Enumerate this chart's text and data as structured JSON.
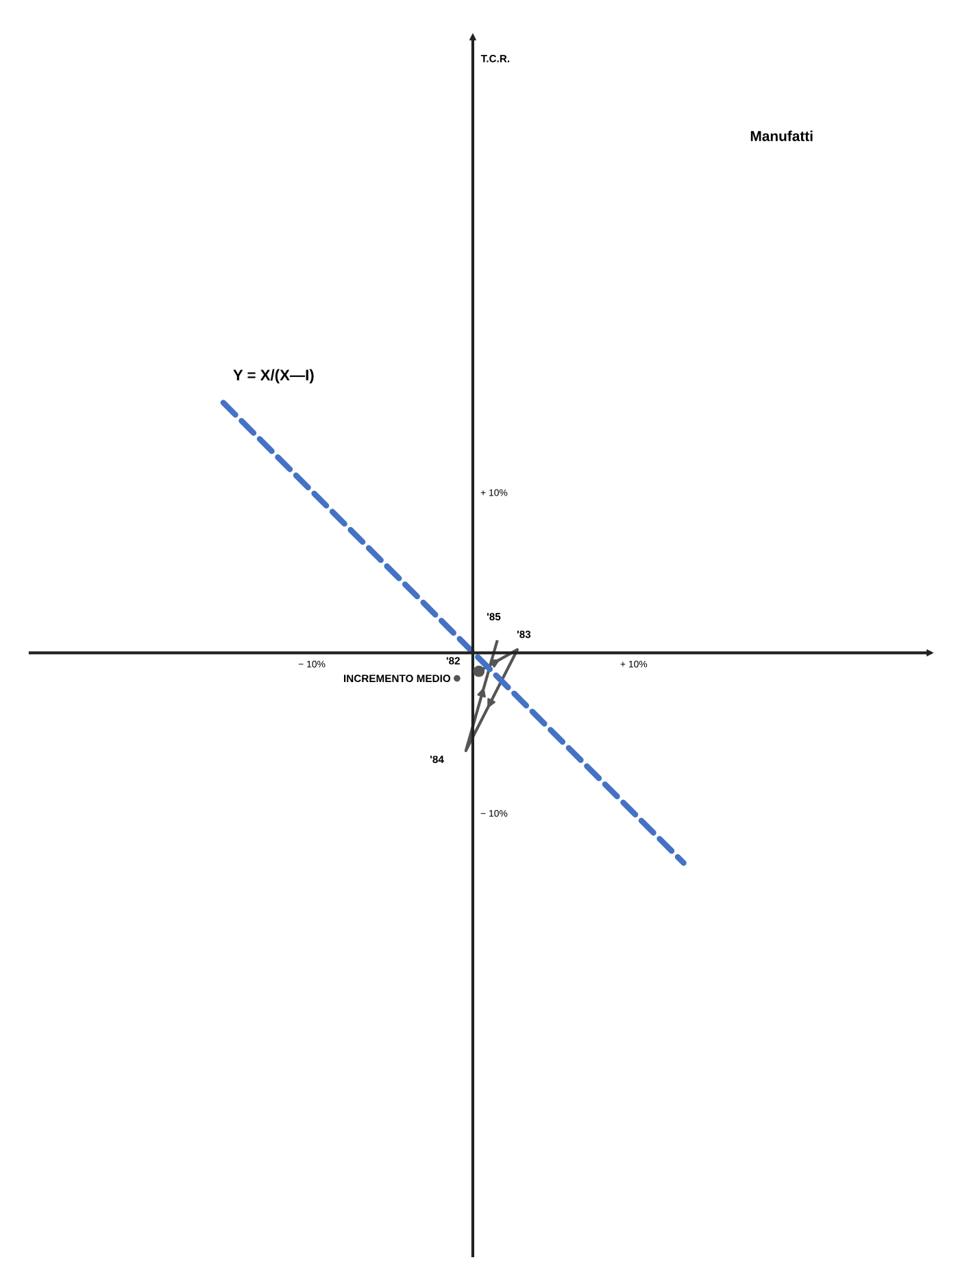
{
  "chart_data": {
    "type": "line",
    "title": "Manufatti",
    "ylabel": "T.C.R.",
    "xlim": [
      -27.5,
      28.4
    ],
    "ylim": [
      -37.6,
      38.4
    ],
    "xticks": [
      {
        "value": -10,
        "label": "− 10%"
      },
      {
        "value": 10,
        "label": "+ 10%"
      }
    ],
    "yticks": [
      {
        "value": 10,
        "label": "+ 10%"
      },
      {
        "value": -10,
        "label": "− 10%"
      }
    ],
    "grid": false,
    "legend": "center",
    "series": [
      {
        "color": "#555555",
        "x": [
          0.38,
          2.77,
          -0.43,
          1.5
        ],
        "values": [
          -1.15,
          0.2,
          -6.1,
          0.7
        ],
        "marker": "none",
        "line_style": "solid"
      },
      {
        "type": "line",
        "name": "Y = X/(X—I)",
        "color": "#4472c4",
        "x": [
          -15.5,
          13.1
        ],
        "values": [
          15.6,
          -13.1
        ],
        "marker": "none",
        "line_style": "dashed"
      },
      {
        "type": "scatter",
        "name": "INCREMENTO MEDIO",
        "color": "#555555",
        "x": [
          0.38
        ],
        "values": [
          -1.15
        ],
        "marker": "circle"
      }
    ],
    "annotations": [
      {
        "text": "'82",
        "x": 0.38,
        "y": -1.15
      },
      {
        "text": "'83",
        "x": 2.77,
        "y": 0.2
      },
      {
        "text": "'84",
        "x": -0.43,
        "y": -6.1
      },
      {
        "text": "'85",
        "x": 1.5,
        "y": 0.7
      }
    ]
  }
}
